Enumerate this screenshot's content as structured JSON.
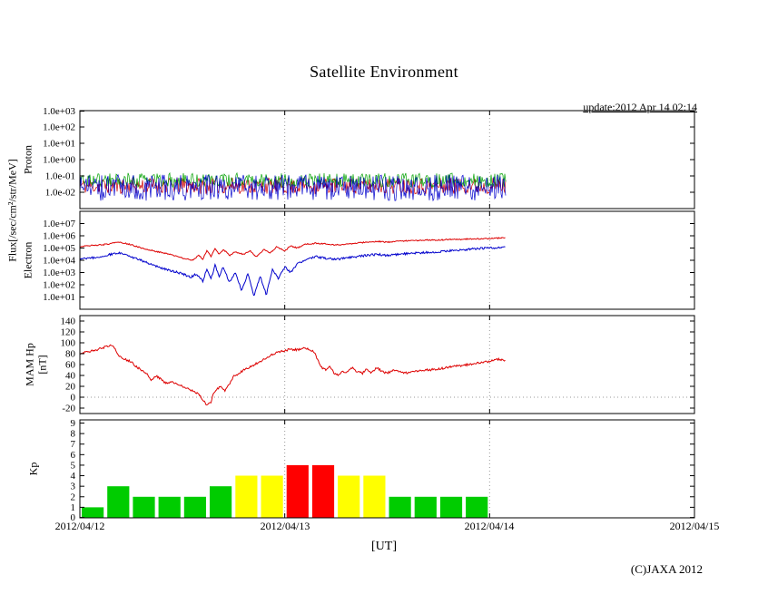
{
  "page": {
    "title": "Satellite Environment",
    "update": "update:2012 Apr 14 02:14",
    "copyright": "(C)JAXA 2012",
    "xlabel": "[UT]",
    "flux_axis_label": "Flux[/sec/cm²/str/MeV]"
  },
  "x_axis": {
    "tick_labels": [
      "2012/04/12",
      "2012/04/13",
      "2012/04/14",
      "2012/04/15"
    ],
    "range_days": [
      0,
      3
    ],
    "gridline_days": [
      1,
      2
    ]
  },
  "chart_data": [
    {
      "type": "line",
      "name": "proton-flux",
      "ylabel": "Proton",
      "yscale": "log",
      "ylim": [
        0.001,
        1000
      ],
      "ytick_values": [
        1000,
        100,
        10,
        1,
        0.1,
        0.01
      ],
      "ytick_labels": [
        "1.0e+03",
        "1.0e+02",
        "1.0e+01",
        "1.0e+00",
        "1.0e-01",
        "1.0e-02"
      ],
      "noise_series": [
        {
          "name": "proton-red",
          "color": "#cc0000",
          "min": 0.008,
          "max": 0.08,
          "t_start": 0,
          "t_end": 2.08
        },
        {
          "name": "proton-green",
          "color": "#00a000",
          "min": 0.02,
          "max": 0.15,
          "t_start": 0,
          "t_end": 2.08
        },
        {
          "name": "proton-blue",
          "color": "#0000cc",
          "min": 0.003,
          "max": 0.12,
          "t_start": 0,
          "t_end": 2.08
        }
      ]
    },
    {
      "type": "line",
      "name": "electron-flux",
      "ylabel": "Electron",
      "yscale": "log",
      "ylim": [
        1,
        100000000
      ],
      "ytick_values": [
        10000000,
        1000000,
        100000,
        10000,
        1000,
        100,
        10
      ],
      "ytick_labels": [
        "1.0e+07",
        "1.0e+06",
        "1.0e+05",
        "1.0e+04",
        "1.0e+03",
        "1.0e+02",
        "1.0e+01"
      ],
      "series": [
        {
          "name": "electron-high",
          "color": "#dd0000",
          "jitter": 0.05,
          "points": [
            [
              0,
              130000
            ],
            [
              0.05,
              160000
            ],
            [
              0.1,
              180000
            ],
            [
              0.15,
              220000
            ],
            [
              0.18,
              300000
            ],
            [
              0.22,
              250000
            ],
            [
              0.27,
              150000
            ],
            [
              0.32,
              80000
            ],
            [
              0.38,
              50000
            ],
            [
              0.44,
              30000
            ],
            [
              0.5,
              15000
            ],
            [
              0.55,
              10000
            ],
            [
              0.58,
              25000
            ],
            [
              0.6,
              12000
            ],
            [
              0.62,
              60000
            ],
            [
              0.64,
              20000
            ],
            [
              0.66,
              90000
            ],
            [
              0.68,
              30000
            ],
            [
              0.7,
              80000
            ],
            [
              0.73,
              25000
            ],
            [
              0.76,
              50000
            ],
            [
              0.8,
              30000
            ],
            [
              0.83,
              60000
            ],
            [
              0.86,
              20000
            ],
            [
              0.9,
              80000
            ],
            [
              0.93,
              40000
            ],
            [
              0.96,
              120000
            ],
            [
              1,
              60000
            ],
            [
              1.03,
              150000
            ],
            [
              1.06,
              100000
            ],
            [
              1.1,
              200000
            ],
            [
              1.15,
              250000
            ],
            [
              1.2,
              220000
            ],
            [
              1.25,
              180000
            ],
            [
              1.3,
              200000
            ],
            [
              1.35,
              250000
            ],
            [
              1.4,
              300000
            ],
            [
              1.45,
              350000
            ],
            [
              1.5,
              300000
            ],
            [
              1.55,
              350000
            ],
            [
              1.6,
              400000
            ],
            [
              1.65,
              400000
            ],
            [
              1.7,
              450000
            ],
            [
              1.75,
              450000
            ],
            [
              1.8,
              500000
            ],
            [
              1.85,
              500000
            ],
            [
              1.9,
              550000
            ],
            [
              1.95,
              550000
            ],
            [
              2,
              600000
            ],
            [
              2.04,
              650000
            ],
            [
              2.08,
              700000
            ]
          ]
        },
        {
          "name": "electron-low",
          "color": "#0000cc",
          "jitter": 0.09,
          "points": [
            [
              0,
              12000
            ],
            [
              0.05,
              15000
            ],
            [
              0.1,
              20000
            ],
            [
              0.15,
              30000
            ],
            [
              0.18,
              40000
            ],
            [
              0.22,
              30000
            ],
            [
              0.27,
              15000
            ],
            [
              0.32,
              7000
            ],
            [
              0.38,
              3000
            ],
            [
              0.44,
              1500
            ],
            [
              0.5,
              800
            ],
            [
              0.54,
              400
            ],
            [
              0.57,
              800
            ],
            [
              0.6,
              200
            ],
            [
              0.62,
              2000
            ],
            [
              0.64,
              300
            ],
            [
              0.66,
              4000
            ],
            [
              0.68,
              500
            ],
            [
              0.7,
              3000
            ],
            [
              0.73,
              150
            ],
            [
              0.76,
              1000
            ],
            [
              0.79,
              30
            ],
            [
              0.82,
              800
            ],
            [
              0.85,
              12
            ],
            [
              0.88,
              500
            ],
            [
              0.91,
              15
            ],
            [
              0.94,
              2000
            ],
            [
              0.97,
              300
            ],
            [
              1,
              3000
            ],
            [
              1.03,
              1000
            ],
            [
              1.06,
              5000
            ],
            [
              1.1,
              10000
            ],
            [
              1.15,
              20000
            ],
            [
              1.2,
              15000
            ],
            [
              1.25,
              12000
            ],
            [
              1.3,
              15000
            ],
            [
              1.35,
              20000
            ],
            [
              1.4,
              25000
            ],
            [
              1.45,
              30000
            ],
            [
              1.5,
              25000
            ],
            [
              1.55,
              30000
            ],
            [
              1.6,
              35000
            ],
            [
              1.65,
              40000
            ],
            [
              1.7,
              45000
            ],
            [
              1.75,
              50000
            ],
            [
              1.8,
              60000
            ],
            [
              1.85,
              70000
            ],
            [
              1.9,
              80000
            ],
            [
              1.95,
              90000
            ],
            [
              2,
              100000
            ],
            [
              2.04,
              110000
            ],
            [
              2.08,
              120000
            ]
          ]
        }
      ]
    },
    {
      "type": "line",
      "name": "mam-hp",
      "ylabel": "MAM Hp",
      "ylabel2": "[nT]",
      "yscale": "linear",
      "ylim": [
        -30,
        150
      ],
      "ytick_values": [
        140,
        120,
        100,
        80,
        60,
        40,
        20,
        0,
        -20
      ],
      "ytick_labels": [
        "140",
        "120",
        "100",
        "80",
        "60",
        "40",
        "20",
        "0",
        "-20"
      ],
      "zero_line": true,
      "series": [
        {
          "name": "hp",
          "color": "#dd0000",
          "jitter": 2,
          "points": [
            [
              0,
              80
            ],
            [
              0.03,
              83
            ],
            [
              0.06,
              85
            ],
            [
              0.09,
              88
            ],
            [
              0.12,
              92
            ],
            [
              0.15,
              95
            ],
            [
              0.17,
              90
            ],
            [
              0.19,
              75
            ],
            [
              0.22,
              70
            ],
            [
              0.25,
              65
            ],
            [
              0.28,
              55
            ],
            [
              0.3,
              50
            ],
            [
              0.33,
              42
            ],
            [
              0.35,
              30
            ],
            [
              0.37,
              40
            ],
            [
              0.4,
              32
            ],
            [
              0.42,
              25
            ],
            [
              0.45,
              28
            ],
            [
              0.48,
              22
            ],
            [
              0.5,
              20
            ],
            [
              0.53,
              15
            ],
            [
              0.56,
              10
            ],
            [
              0.58,
              5
            ],
            [
              0.6,
              -5
            ],
            [
              0.62,
              -15
            ],
            [
              0.64,
              -10
            ],
            [
              0.65,
              5
            ],
            [
              0.67,
              15
            ],
            [
              0.69,
              20
            ],
            [
              0.71,
              12
            ],
            [
              0.73,
              25
            ],
            [
              0.75,
              38
            ],
            [
              0.78,
              45
            ],
            [
              0.8,
              50
            ],
            [
              0.83,
              55
            ],
            [
              0.86,
              62
            ],
            [
              0.89,
              68
            ],
            [
              0.92,
              75
            ],
            [
              0.95,
              80
            ],
            [
              0.98,
              84
            ],
            [
              1,
              86
            ],
            [
              1.03,
              88
            ],
            [
              1.06,
              87
            ],
            [
              1.09,
              90
            ],
            [
              1.12,
              88
            ],
            [
              1.14,
              85
            ],
            [
              1.16,
              70
            ],
            [
              1.18,
              55
            ],
            [
              1.2,
              50
            ],
            [
              1.22,
              58
            ],
            [
              1.24,
              45
            ],
            [
              1.26,
              40
            ],
            [
              1.28,
              48
            ],
            [
              1.3,
              44
            ],
            [
              1.33,
              55
            ],
            [
              1.35,
              47
            ],
            [
              1.38,
              44
            ],
            [
              1.4,
              52
            ],
            [
              1.42,
              45
            ],
            [
              1.45,
              55
            ],
            [
              1.47,
              48
            ],
            [
              1.5,
              44
            ],
            [
              1.53,
              50
            ],
            [
              1.56,
              46
            ],
            [
              1.6,
              45
            ],
            [
              1.65,
              48
            ],
            [
              1.7,
              50
            ],
            [
              1.75,
              52
            ],
            [
              1.8,
              55
            ],
            [
              1.85,
              58
            ],
            [
              1.9,
              60
            ],
            [
              1.95,
              63
            ],
            [
              2,
              66
            ],
            [
              2.04,
              70
            ],
            [
              2.08,
              67
            ]
          ]
        }
      ]
    },
    {
      "type": "bar",
      "name": "kp-index",
      "ylabel": "Kp",
      "yscale": "linear",
      "ylim": [
        0,
        9.3
      ],
      "ytick_values": [
        9,
        8,
        7,
        6,
        5,
        4,
        3,
        2,
        1,
        0
      ],
      "ytick_labels": [
        "9",
        "8",
        "7",
        "6",
        "5",
        "4",
        "3",
        "2",
        "1",
        "0"
      ],
      "bars_per_day": 8,
      "values": [
        1,
        3,
        2,
        2,
        2,
        3,
        4,
        4,
        5,
        5,
        4,
        4,
        2,
        2,
        2,
        2
      ],
      "colors": {
        "quiet": "#00cc00",
        "active": "#ffff00",
        "storm": "#ff0000"
      },
      "thresholds": {
        "active": 4,
        "storm": 5
      }
    }
  ]
}
